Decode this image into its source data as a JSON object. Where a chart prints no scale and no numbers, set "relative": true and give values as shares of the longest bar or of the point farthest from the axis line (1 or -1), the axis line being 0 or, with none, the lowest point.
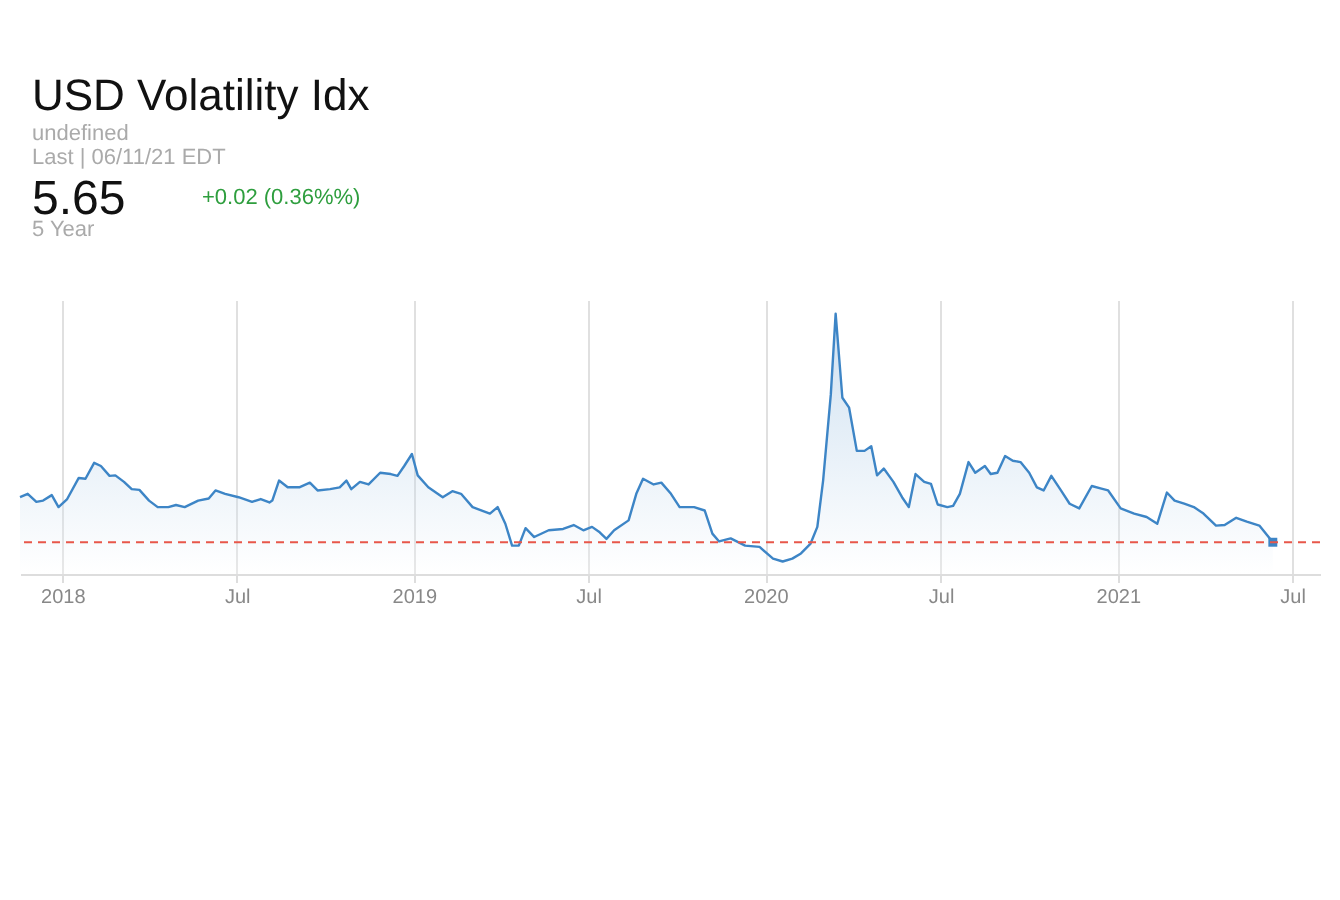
{
  "chart_data": {
    "type": "area",
    "title": "USD Volatility Idx",
    "relative": true,
    "grid": "x",
    "annotations": [
      "undefined",
      "Last | 06/11/21 EDT",
      "5.65",
      "+0.02 (0.36%%)",
      "5 Year"
    ],
    "xlim": [
      "2017-11-18",
      "2021-07-30"
    ],
    "xticks": [
      {
        "value": "2018",
        "label": "2018"
      },
      {
        "value": "2018-07",
        "label": "Jul"
      },
      {
        "value": "2019",
        "label": "2019"
      },
      {
        "value": "2019-07",
        "label": "Jul"
      },
      {
        "value": "2020",
        "label": "2020"
      },
      {
        "value": "2020-07",
        "label": "Jul"
      },
      {
        "value": "2021",
        "label": "2021"
      },
      {
        "value": "2021-07",
        "label": "Jul"
      }
    ],
    "ref_lines": [
      {
        "axis": "y",
        "value": 0.122,
        "color": "#e8574a",
        "line_style": "dashed"
      }
    ],
    "series": [
      {
        "color": "#3d85c6",
        "x": [
          "2017-11-18",
          "2017-11-26",
          "2017-12-05",
          "2017-12-12",
          "2017-12-21",
          "2017-12-28",
          "2018-01-06",
          "2018-01-18",
          "2018-01-25",
          "2018-02-03",
          "2018-02-10",
          "2018-02-19",
          "2018-02-25",
          "2018-03-06",
          "2018-03-14",
          "2018-03-22",
          "2018-04-01",
          "2018-04-10",
          "2018-04-21",
          "2018-04-29",
          "2018-05-08",
          "2018-05-22",
          "2018-06-02",
          "2018-06-09",
          "2018-06-19",
          "2018-07-03",
          "2018-07-17",
          "2018-07-26",
          "2018-08-04",
          "2018-08-07",
          "2018-08-14",
          "2018-08-23",
          "2018-09-04",
          "2018-09-15",
          "2018-09-23",
          "2018-10-06",
          "2018-10-16",
          "2018-10-23",
          "2018-10-28",
          "2018-11-06",
          "2018-11-15",
          "2018-11-27",
          "2018-12-08",
          "2018-12-15",
          "2018-12-22",
          "2018-12-30",
          "2019-01-05",
          "2019-01-16",
          "2019-01-31",
          "2019-02-10",
          "2019-02-19",
          "2019-03-03",
          "2019-03-14",
          "2019-03-21",
          "2019-03-29",
          "2019-04-06",
          "2019-04-13",
          "2019-04-20",
          "2019-04-27",
          "2019-05-06",
          "2019-05-21",
          "2019-06-05",
          "2019-06-16",
          "2019-06-26",
          "2019-07-05",
          "2019-07-13",
          "2019-07-20",
          "2019-07-28",
          "2019-08-12",
          "2019-08-20",
          "2019-08-27",
          "2019-09-07",
          "2019-09-15",
          "2019-09-25",
          "2019-10-04",
          "2019-10-19",
          "2019-10-30",
          "2019-11-07",
          "2019-11-14",
          "2019-11-26",
          "2019-12-11",
          "2019-12-26",
          "2020-01-09",
          "2020-01-19",
          "2020-01-29",
          "2020-02-07",
          "2020-02-17",
          "2020-02-24",
          "2020-03-01",
          "2020-03-09",
          "2020-03-14",
          "2020-03-21",
          "2020-03-28",
          "2020-04-05",
          "2020-04-13",
          "2020-04-20",
          "2020-04-26",
          "2020-05-03",
          "2020-05-13",
          "2020-05-22",
          "2020-05-29",
          "2020-06-05",
          "2020-06-14",
          "2020-06-21",
          "2020-06-28",
          "2020-07-08",
          "2020-07-14",
          "2020-07-21",
          "2020-07-30",
          "2020-08-06",
          "2020-08-16",
          "2020-08-22",
          "2020-08-29",
          "2020-09-06",
          "2020-09-14",
          "2020-09-22",
          "2020-10-01",
          "2020-10-09",
          "2020-10-16",
          "2020-10-24",
          "2020-11-03",
          "2020-11-12",
          "2020-11-22",
          "2020-12-05",
          "2020-12-15",
          "2020-12-22",
          "2021-01-04",
          "2021-01-18",
          "2021-01-31",
          "2021-02-11",
          "2021-02-21",
          "2021-03-01",
          "2021-03-11",
          "2021-03-21",
          "2021-03-31",
          "2021-04-13",
          "2021-04-22",
          "2021-05-04",
          "2021-05-15",
          "2021-05-28",
          "2021-06-11"
        ],
        "values": [
          0.295,
          0.308,
          0.277,
          0.282,
          0.303,
          0.257,
          0.288,
          0.369,
          0.366,
          0.427,
          0.415,
          0.377,
          0.379,
          0.354,
          0.326,
          0.323,
          0.282,
          0.257,
          0.257,
          0.265,
          0.257,
          0.282,
          0.29,
          0.321,
          0.308,
          0.295,
          0.277,
          0.288,
          0.275,
          0.282,
          0.359,
          0.333,
          0.333,
          0.351,
          0.321,
          0.326,
          0.333,
          0.359,
          0.326,
          0.354,
          0.344,
          0.389,
          0.384,
          0.377,
          0.415,
          0.461,
          0.379,
          0.333,
          0.295,
          0.318,
          0.308,
          0.257,
          0.242,
          0.232,
          0.257,
          0.193,
          0.109,
          0.109,
          0.176,
          0.142,
          0.168,
          0.173,
          0.188,
          0.168,
          0.181,
          0.16,
          0.135,
          0.168,
          0.206,
          0.308,
          0.366,
          0.344,
          0.351,
          0.308,
          0.257,
          0.257,
          0.244,
          0.155,
          0.125,
          0.137,
          0.109,
          0.104,
          0.059,
          0.048,
          0.059,
          0.079,
          0.117,
          0.181,
          0.359,
          0.69,
          1,
          0.677,
          0.639,
          0.473,
          0.473,
          0.491,
          0.379,
          0.405,
          0.354,
          0.295,
          0.257,
          0.384,
          0.354,
          0.346,
          0.267,
          0.257,
          0.262,
          0.308,
          0.43,
          0.389,
          0.415,
          0.384,
          0.389,
          0.453,
          0.435,
          0.43,
          0.389,
          0.333,
          0.321,
          0.377,
          0.321,
          0.27,
          0.252,
          0.338,
          0.328,
          0.321,
          0.252,
          0.232,
          0.219,
          0.193,
          0.313,
          0.282,
          0.27,
          0.257,
          0.232,
          0.186,
          0.188,
          0.216,
          0.201,
          0.186,
          0.122
        ]
      }
    ]
  }
}
